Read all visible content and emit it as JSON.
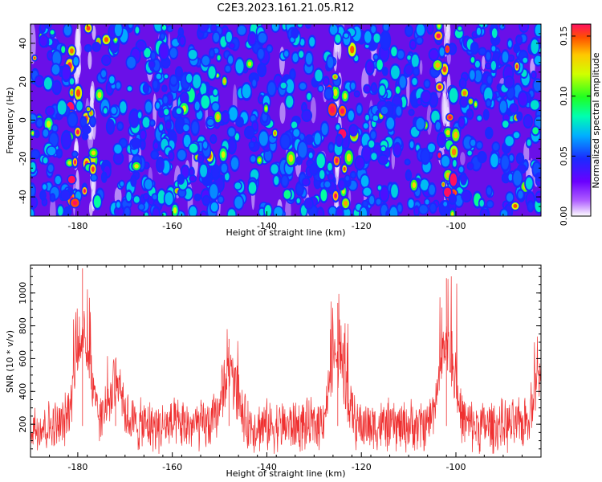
{
  "figure": {
    "title": "C2E3.2023.161.21.05.R12"
  },
  "chart_data": [
    {
      "type": "heatmap",
      "panel": "spectrogram",
      "xlabel": "Height of straight line (km)",
      "ylabel": "Frequency (Hz)",
      "xlim": [
        -190,
        -82
      ],
      "ylim": [
        -50,
        50
      ],
      "xticks": [
        -180,
        -160,
        -140,
        -120,
        -100
      ],
      "yticks": [
        -40,
        -20,
        0,
        20,
        40
      ],
      "colorbar": {
        "label": "Normalized spectral amplitude",
        "range": [
          0,
          0.16
        ],
        "ticks": [
          0.0,
          0.05,
          0.1,
          0.15
        ]
      },
      "bright_streaks_km": [
        -180,
        -177,
        -125,
        -102
      ],
      "background_level": 0.03,
      "blob_level_typical": 0.06,
      "blob_level_max": 0.16
    },
    {
      "type": "line",
      "panel": "snr",
      "xlabel": "Height of straight line (km)",
      "ylabel": "SNR (10 * v/v)",
      "xlim": [
        -190,
        -82
      ],
      "ylim": [
        0,
        1170
      ],
      "xticks": [
        -180,
        -160,
        -140,
        -120,
        -100
      ],
      "yticks": [
        200,
        400,
        600,
        800,
        1000
      ],
      "series": [
        {
          "name": "SNR",
          "color": "#ef3030",
          "baseline_mean": 190,
          "baseline_noise_range": [
            30,
            380
          ],
          "peaks": [
            {
              "x": -179,
              "value": 1150
            },
            {
              "x": -172,
              "value": 600
            },
            {
              "x": -148,
              "value": 720
            },
            {
              "x": -125,
              "value": 940
            },
            {
              "x": -102,
              "value": 1090
            },
            {
              "x": -82,
              "value": 700
            }
          ]
        }
      ]
    }
  ]
}
